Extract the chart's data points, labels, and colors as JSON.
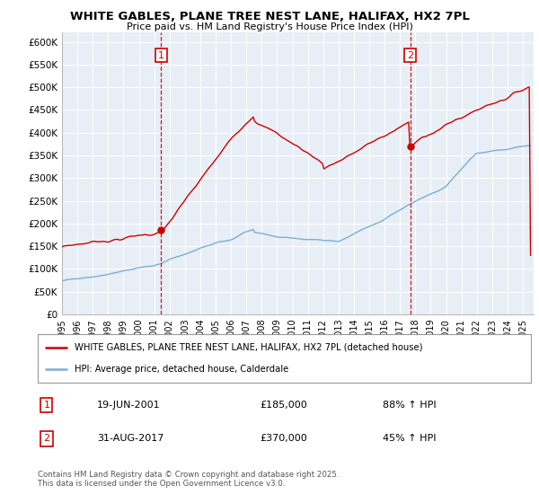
{
  "title": "WHITE GABLES, PLANE TREE NEST LANE, HALIFAX, HX2 7PL",
  "subtitle": "Price paid vs. HM Land Registry's House Price Index (HPI)",
  "legend_line1": "WHITE GABLES, PLANE TREE NEST LANE, HALIFAX, HX2 7PL (detached house)",
  "legend_line2": "HPI: Average price, detached house, Calderdale",
  "annotation1": {
    "label": "1",
    "date": "19-JUN-2001",
    "price": "£185,000",
    "pct": "88% ↑ HPI"
  },
  "annotation2": {
    "label": "2",
    "date": "31-AUG-2017",
    "price": "£370,000",
    "pct": "45% ↑ HPI"
  },
  "footer": "Contains HM Land Registry data © Crown copyright and database right 2025.\nThis data is licensed under the Open Government Licence v3.0.",
  "red_color": "#cc0000",
  "blue_color": "#7aaed6",
  "vline_color": "#cc0000",
  "plot_bg_color": "#e8eef5",
  "background_color": "#ffffff",
  "grid_color": "#ffffff",
  "ylim": [
    0,
    620000
  ],
  "yticks": [
    0,
    50000,
    100000,
    150000,
    200000,
    250000,
    300000,
    350000,
    400000,
    450000,
    500000,
    550000,
    600000
  ],
  "ytick_labels": [
    "£0",
    "£50K",
    "£100K",
    "£150K",
    "£200K",
    "£250K",
    "£300K",
    "£350K",
    "£400K",
    "£450K",
    "£500K",
    "£550K",
    "£600K"
  ],
  "xlim_start": 1995.0,
  "xlim_end": 2025.7,
  "xtick_years": [
    1995,
    1996,
    1997,
    1998,
    1999,
    2000,
    2001,
    2002,
    2003,
    2004,
    2005,
    2006,
    2007,
    2008,
    2009,
    2010,
    2011,
    2012,
    2013,
    2014,
    2015,
    2016,
    2017,
    2018,
    2019,
    2020,
    2021,
    2022,
    2023,
    2024,
    2025
  ],
  "vline1_x": 2001.46,
  "vline2_x": 2017.66,
  "marker1_y": 185000,
  "marker2_y": 370000
}
